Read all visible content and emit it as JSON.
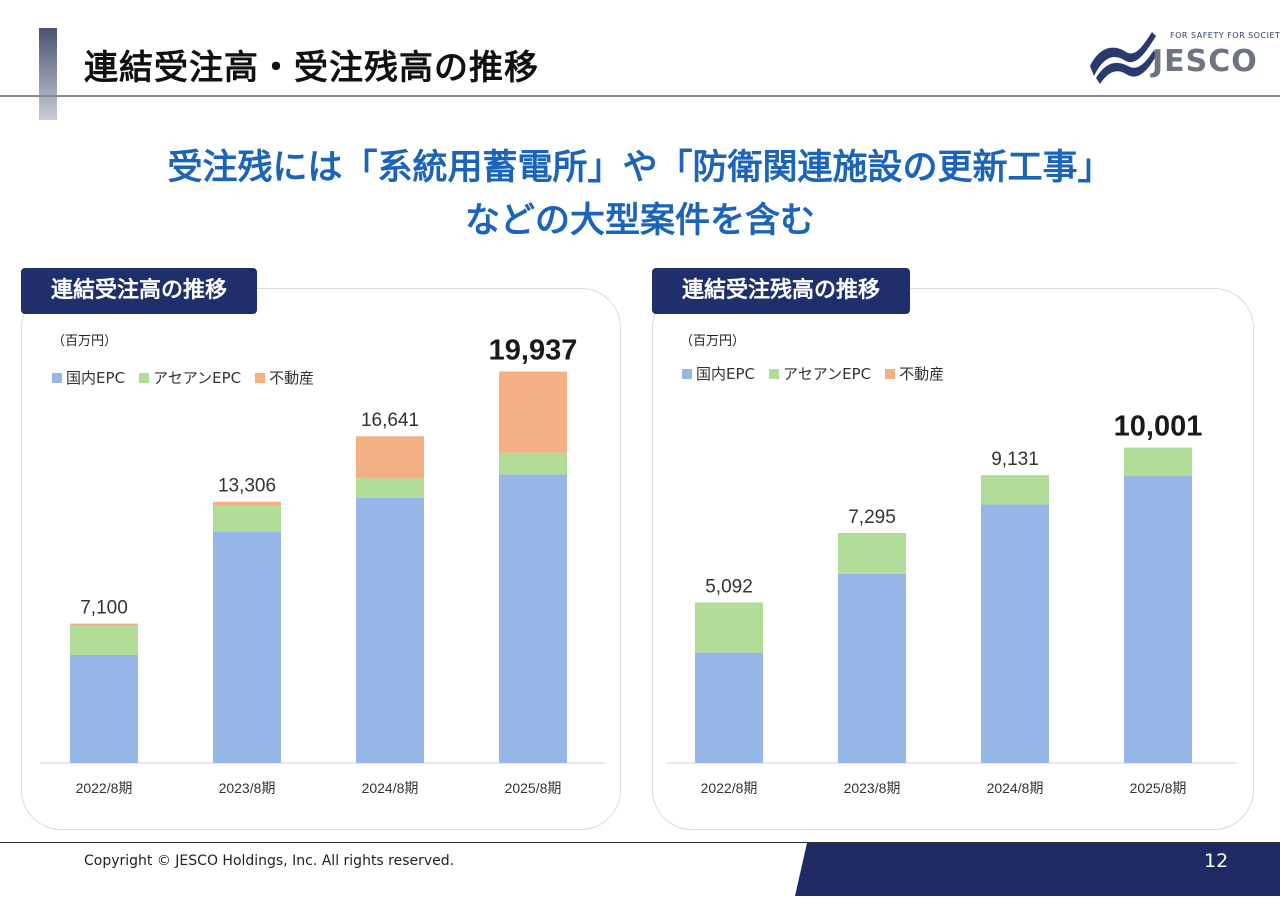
{
  "page": {
    "title": "連結受注高・受注残高の推移",
    "headline_line1": "受注残には「系統用蓄電所」や「防衛関連施設の更新工事」",
    "headline_line2": "などの大型案件を含む",
    "copyright": "Copyright © JESCO Holdings, Inc.  All rights reserved.",
    "page_number": "12"
  },
  "logo": {
    "tagline": "FOR SAFETY FOR SOCIETY",
    "wordmark": "JESCO"
  },
  "colors": {
    "navy": "#1e2f6b",
    "headline_blue": "#1b64b9",
    "domestic": "#97b6e8",
    "asean": "#b2dd98",
    "real_estate": "#f3b083"
  },
  "chart_data": [
    {
      "type": "bar",
      "stacked": true,
      "title": "連結受注高の推移",
      "unit": "（百万円）",
      "categories": [
        "2022/8期",
        "2023/8期",
        "2024/8期",
        "2025/8期"
      ],
      "totals": [
        "7,100",
        "13,306",
        "16,641",
        "19,937"
      ],
      "series": [
        {
          "name": "国内EPC",
          "color": "#97b6e8",
          "values": [
            5500,
            11800,
            13500,
            14700
          ]
        },
        {
          "name": "アセアンEPC",
          "color": "#b2dd98",
          "values": [
            1500,
            1300,
            1000,
            1100
          ]
        },
        {
          "name": "不動産",
          "color": "#f3b083",
          "values": [
            100,
            206,
            2141,
            4137
          ]
        }
      ],
      "ylim": [
        0,
        22000
      ],
      "legend": "top-left"
    },
    {
      "type": "bar",
      "stacked": true,
      "title": "連結受注残高の推移",
      "unit": "（百万円）",
      "categories": [
        "2022/8期",
        "2023/8期",
        "2024/8期",
        "2025/8期"
      ],
      "totals": [
        "5,092",
        "7,295",
        "9,131",
        "10,001"
      ],
      "series": [
        {
          "name": "国内EPC",
          "color": "#97b6e8",
          "values": [
            3500,
            6000,
            8200,
            9100
          ]
        },
        {
          "name": "アセアンEPC",
          "color": "#b2dd98",
          "values": [
            1592,
            1295,
            931,
            901
          ]
        },
        {
          "name": "不動産",
          "color": "#f3b083",
          "values": [
            0,
            0,
            0,
            0
          ]
        }
      ],
      "ylim": [
        0,
        13700
      ],
      "legend": "top-left"
    }
  ]
}
